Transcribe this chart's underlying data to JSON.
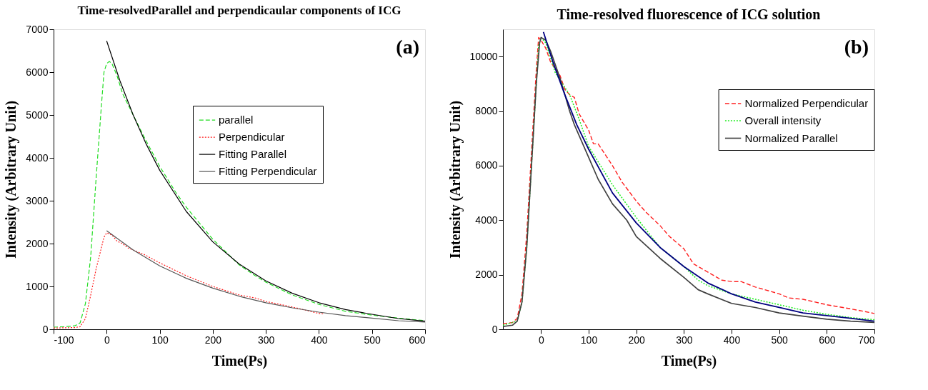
{
  "chart_data": [
    {
      "type": "line",
      "title": "Time-resolvedParallel and perpendicaular components of  ICG",
      "xlabel": "Time(Ps)",
      "ylabel": "Intensity (Arbitrary Unit)",
      "xlim": [
        -100,
        600
      ],
      "ylim": [
        0,
        7000
      ],
      "xticks": [
        -100,
        0,
        100,
        200,
        300,
        400,
        500,
        600
      ],
      "yticks": [
        0,
        1000,
        2000,
        3000,
        4000,
        5000,
        6000,
        7000
      ],
      "grid": false,
      "legend": "right",
      "marker": "none",
      "annotations": [
        "(a)"
      ],
      "series": [
        {
          "name": "parallel",
          "color": "#22dd22",
          "line_style": "dashed",
          "x": [
            -100,
            -80,
            -60,
            -50,
            -40,
            -30,
            -20,
            -10,
            -5,
            0,
            5,
            10,
            20,
            30,
            50,
            70,
            100,
            130,
            150,
            180,
            200,
            250,
            280,
            300,
            350,
            400,
            450,
            500,
            550,
            600
          ],
          "values": [
            50,
            60,
            80,
            150,
            600,
            1700,
            3500,
            5200,
            6000,
            6200,
            6250,
            6200,
            5900,
            5500,
            5000,
            4500,
            3800,
            3200,
            2850,
            2400,
            2100,
            1500,
            1250,
            1100,
            800,
            580,
            420,
            330,
            260,
            200
          ]
        },
        {
          "name": "Perpendicular",
          "color": "#ff2020",
          "line_style": "dotted",
          "x": [
            -100,
            -60,
            -50,
            -40,
            -30,
            -20,
            -10,
            -5,
            0,
            10,
            20,
            30,
            40,
            50,
            70,
            100,
            150,
            200,
            250,
            280,
            300,
            350,
            400,
            410
          ],
          "values": [
            30,
            40,
            60,
            250,
            800,
            1400,
            1900,
            2150,
            2250,
            2200,
            2050,
            2000,
            1900,
            1850,
            1750,
            1550,
            1250,
            1000,
            800,
            730,
            650,
            520,
            370,
            360
          ]
        },
        {
          "name": "Fitting Parallel",
          "color": "#000000",
          "line_style": "solid",
          "x": [
            0,
            25,
            50,
            75,
            100,
            150,
            200,
            250,
            300,
            350,
            400,
            450,
            500,
            550,
            600
          ],
          "values": [
            6730,
            5800,
            5000,
            4310,
            3710,
            2750,
            2040,
            1520,
            1130,
            840,
            620,
            460,
            350,
            250,
            190
          ]
        },
        {
          "name": "Fitting Perpendicular",
          "color": "#555555",
          "line_style": "solid",
          "x": [
            0,
            50,
            100,
            150,
            200,
            250,
            300,
            350,
            400,
            450,
            500,
            550,
            600
          ],
          "values": [
            2300,
            1850,
            1480,
            1190,
            960,
            770,
            620,
            500,
            400,
            320,
            260,
            200,
            170
          ]
        }
      ]
    },
    {
      "type": "line",
      "title": "Time-resolved fluorescence of ICG solution",
      "xlabel": "Time(Ps)",
      "ylabel": "Intensity (Arbitrary Unit)",
      "xlim": [
        -80,
        700
      ],
      "ylim": [
        0,
        11000
      ],
      "xticks": [
        0,
        100,
        200,
        300,
        400,
        500,
        600,
        700
      ],
      "yticks": [
        0,
        2000,
        4000,
        6000,
        8000,
        10000
      ],
      "grid": false,
      "legend": "top right",
      "marker": "none",
      "annotations": [
        "(b)"
      ],
      "series": [
        {
          "name": "Normalized Perpendicular",
          "color": "#ff2020",
          "line_style": "dashed",
          "x": [
            -80,
            -60,
            -50,
            -40,
            -30,
            -20,
            -10,
            -5,
            0,
            10,
            20,
            40,
            50,
            60,
            70,
            80,
            90,
            100,
            110,
            120,
            150,
            170,
            200,
            220,
            250,
            270,
            300,
            320,
            350,
            380,
            400,
            420,
            450,
            500,
            520,
            550,
            600,
            650,
            680,
            700
          ],
          "values": [
            200,
            250,
            400,
            1300,
            3500,
            6500,
            9500,
            10700,
            10600,
            10300,
            9800,
            9300,
            8800,
            8600,
            8500,
            7900,
            7600,
            7300,
            6800,
            6800,
            6000,
            5400,
            4700,
            4300,
            3800,
            3400,
            2950,
            2400,
            2100,
            1800,
            1750,
            1750,
            1550,
            1300,
            1150,
            1100,
            900,
            750,
            650,
            580
          ]
        },
        {
          "name": "Overall intensity",
          "color": "#22ee22",
          "line_style": "dotted",
          "x": [
            -80,
            -50,
            -40,
            -30,
            -20,
            -10,
            -5,
            0,
            10,
            30,
            60,
            80,
            100,
            150,
            200,
            250,
            300,
            330,
            350,
            400,
            450,
            500,
            550,
            600,
            650,
            700
          ],
          "values": [
            150,
            300,
            1000,
            3000,
            6000,
            9000,
            10400,
            10700,
            10500,
            9400,
            8600,
            7700,
            6700,
            5300,
            4100,
            3000,
            2300,
            1800,
            1600,
            1300,
            1100,
            900,
            700,
            550,
            430,
            350
          ]
        },
        {
          "name": "Normalized Parallel",
          "color": "#404040",
          "line_style": "solid",
          "x": [
            -80,
            -60,
            -50,
            -40,
            -30,
            -20,
            -10,
            -3,
            0,
            10,
            20,
            40,
            60,
            70,
            80,
            100,
            120,
            150,
            180,
            200,
            250,
            300,
            330,
            350,
            400,
            450,
            500,
            550,
            600,
            650,
            700
          ],
          "values": [
            100,
            150,
            300,
            1000,
            3000,
            6000,
            9000,
            10500,
            10700,
            10600,
            10200,
            9200,
            8000,
            7500,
            7100,
            6300,
            5500,
            4600,
            4000,
            3400,
            2600,
            1900,
            1450,
            1300,
            950,
            800,
            600,
            480,
            370,
            300,
            250
          ]
        },
        {
          "color": "#000080",
          "line_style": "solid",
          "x": [
            5,
            25,
            50,
            75,
            100,
            150,
            200,
            250,
            300,
            350,
            400,
            450,
            500,
            550,
            600,
            650,
            700
          ],
          "values": [
            10900,
            9800,
            8600,
            7500,
            6600,
            5000,
            3900,
            3000,
            2300,
            1700,
            1300,
            1000,
            800,
            600,
            500,
            400,
            300
          ]
        }
      ]
    }
  ]
}
